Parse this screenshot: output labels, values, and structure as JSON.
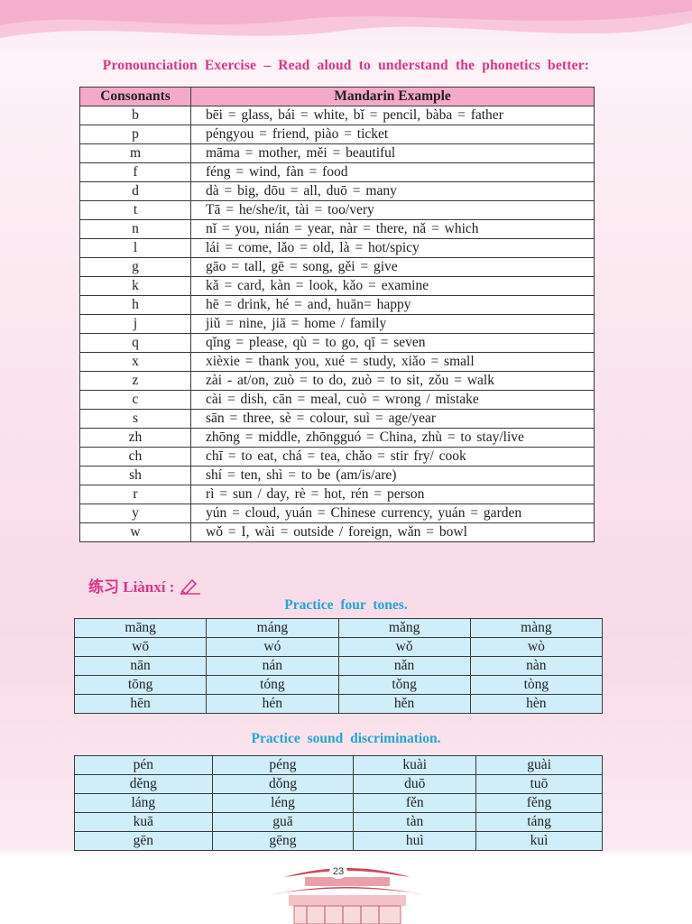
{
  "heading": "Pronounciation Exercise – Read aloud to understand the phonetics better:",
  "consonants_table": {
    "headers": [
      "Consonants",
      "Mandarin Example"
    ],
    "rows": [
      [
        "b",
        "bēi = glass, bái = white, bǐ = pencil, bàba = father"
      ],
      [
        "p",
        "péngyou = friend, piào = ticket"
      ],
      [
        "m",
        "māma = mother, měi = beautiful"
      ],
      [
        "f",
        "féng = wind, fàn = food"
      ],
      [
        "d",
        "dà = big, dōu = all, duō = many"
      ],
      [
        "t",
        "Tā = he/she/it, tài = too/very"
      ],
      [
        "n",
        "nǐ = you, nián = year, nàr = there, nǎ = which"
      ],
      [
        "l",
        "lái = come, lǎo = old, là = hot/spicy"
      ],
      [
        "g",
        "gāo = tall, gē = song, gěi = give"
      ],
      [
        "k",
        "kǎ = card, kàn = look, kǎo = examine"
      ],
      [
        "h",
        "hē = drink, hé = and, huān= happy"
      ],
      [
        "j",
        "jiǔ = nine, jiā = home / family"
      ],
      [
        "q",
        "qǐng = please, qù = to go, qī = seven"
      ],
      [
        "x",
        "xièxie = thank you, xué = study, xiǎo = small"
      ],
      [
        "z",
        "zài - at/on, zuò = to do, zuò = to sit, zǒu = walk"
      ],
      [
        "c",
        "cài = dish, cān = meal, cuò = wrong / mistake"
      ],
      [
        "s",
        "sān = three, sè = colour, suì = age/year"
      ],
      [
        "zh",
        "zhōng = middle, zhōngguó = China, zhù = to stay/live"
      ],
      [
        "ch",
        "chī = to eat, chá = tea, chǎo = stir fry/ cook"
      ],
      [
        "sh",
        "shí = ten, shì = to be (am/is/are)"
      ],
      [
        "r",
        "rì = sun / day, rè = hot, rén = person"
      ],
      [
        "y",
        "yún = cloud, yuán = Chinese currency, yuán = garden"
      ],
      [
        "w",
        "wǒ = I, wài = outside / foreign, wǎn = bowl"
      ]
    ]
  },
  "lianxi": {
    "label": "练习 Liànxí :",
    "icon": "pencil-write-icon"
  },
  "tones": {
    "title": "Practice four tones.",
    "rows": [
      [
        "māng",
        "máng",
        "mǎng",
        "màng"
      ],
      [
        "wō",
        "wó",
        "wǒ",
        "wò"
      ],
      [
        "nān",
        "nán",
        "nǎn",
        "nàn"
      ],
      [
        "tōng",
        "tóng",
        "tǒng",
        "tòng"
      ],
      [
        "hēn",
        "hén",
        "hěn",
        "hèn"
      ]
    ]
  },
  "discrimination": {
    "title": "Practice sound discrimination.",
    "rows": [
      [
        "pén",
        "péng",
        "kuài",
        "guài"
      ],
      [
        "děng",
        "dǒng",
        "duō",
        "tuō"
      ],
      [
        "láng",
        "léng",
        "fěn",
        "fěng"
      ],
      [
        "kuā",
        "guā",
        "tàn",
        "táng"
      ],
      [
        "gēn",
        "gēng",
        "huì",
        "kuì"
      ]
    ]
  },
  "page_number": "23",
  "colors": {
    "heading": "#e0338a",
    "subheading": "#20a6d6",
    "table_header": "#f5a9c9",
    "practice_cell": "#cfeefa"
  }
}
